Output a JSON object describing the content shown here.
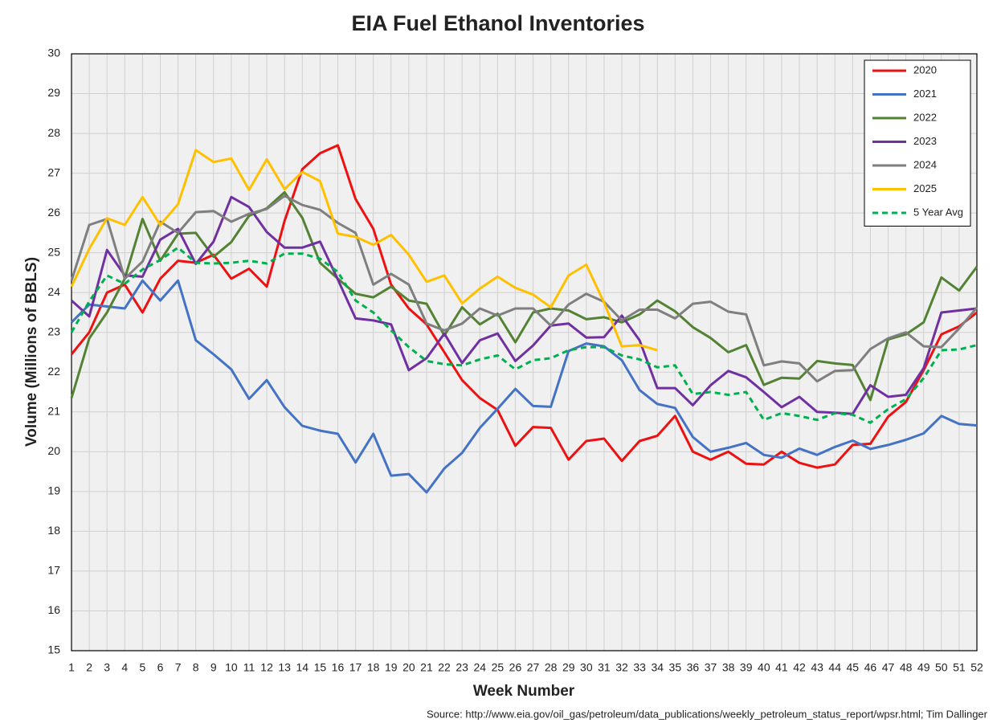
{
  "chart_data": {
    "type": "line",
    "title": "EIA Fuel Ethanol Inventories",
    "ylabel": "Volume (Millions of BBLS)",
    "xlabel": "Week Number",
    "source": "Source: http://www.eia.gov/oil_gas/petroleum/data_publications/weekly_petroleum_status_report/wpsr.html; Tim Dallinger",
    "x": [
      1,
      2,
      3,
      4,
      5,
      6,
      7,
      8,
      9,
      10,
      11,
      12,
      13,
      14,
      15,
      16,
      17,
      18,
      19,
      20,
      21,
      22,
      23,
      24,
      25,
      26,
      27,
      28,
      29,
      30,
      31,
      32,
      33,
      34,
      35,
      36,
      37,
      38,
      39,
      40,
      41,
      42,
      43,
      44,
      45,
      46,
      47,
      48,
      49,
      50,
      51,
      52
    ],
    "xlim": [
      1,
      52
    ],
    "xticks": [
      1,
      2,
      3,
      4,
      5,
      6,
      7,
      8,
      9,
      10,
      11,
      12,
      13,
      14,
      15,
      16,
      17,
      18,
      19,
      20,
      21,
      22,
      23,
      24,
      25,
      26,
      27,
      28,
      29,
      30,
      31,
      32,
      33,
      34,
      35,
      36,
      37,
      38,
      39,
      40,
      41,
      42,
      43,
      44,
      45,
      46,
      47,
      48,
      49,
      50,
      51,
      52
    ],
    "ylim": [
      15,
      30
    ],
    "yticks": [
      15,
      16,
      17,
      18,
      19,
      20,
      21,
      22,
      23,
      24,
      25,
      26,
      27,
      28,
      29,
      30
    ],
    "grid": true,
    "legend": "top-right",
    "series": [
      {
        "name": "2020",
        "color": "#ee1111",
        "style": "solid",
        "values": [
          22.45,
          23.0,
          24.0,
          24.2,
          23.5,
          24.35,
          24.8,
          24.75,
          24.95,
          24.35,
          24.6,
          24.15,
          25.8,
          27.1,
          27.5,
          27.7,
          26.35,
          25.6,
          24.2,
          23.6,
          23.2,
          22.5,
          21.8,
          21.35,
          21.05,
          20.15,
          20.62,
          20.6,
          19.8,
          20.27,
          20.33,
          19.77,
          20.27,
          20.4,
          20.9,
          20.0,
          19.8,
          20.0,
          19.7,
          19.68,
          20.0,
          19.72,
          19.6,
          19.68,
          20.17,
          20.2,
          20.88,
          21.25,
          22.05,
          22.95,
          23.15,
          23.5
        ]
      },
      {
        "name": "2021",
        "color": "#4472c4",
        "style": "solid",
        "values": [
          23.25,
          23.7,
          23.65,
          23.6,
          24.3,
          23.8,
          24.3,
          22.8,
          22.45,
          22.07,
          21.33,
          21.8,
          21.12,
          20.65,
          20.53,
          20.45,
          19.73,
          20.45,
          19.4,
          19.44,
          18.98,
          19.58,
          19.97,
          20.6,
          21.08,
          21.58,
          21.15,
          21.13,
          22.53,
          22.72,
          22.65,
          22.3,
          21.55,
          21.2,
          21.1,
          20.37,
          20.0,
          20.1,
          20.22,
          19.92,
          19.85,
          20.08,
          19.92,
          20.12,
          20.28,
          20.07,
          20.17,
          20.3,
          20.46,
          20.9,
          20.7,
          20.66
        ]
      },
      {
        "name": "2022",
        "color": "#548235",
        "style": "solid",
        "values": [
          21.35,
          22.85,
          23.5,
          24.35,
          25.85,
          24.8,
          25.48,
          25.5,
          24.9,
          25.27,
          25.93,
          26.12,
          26.52,
          25.88,
          24.75,
          24.35,
          23.97,
          23.88,
          24.15,
          23.8,
          23.72,
          22.92,
          23.63,
          23.2,
          23.47,
          22.75,
          23.5,
          23.6,
          23.55,
          23.33,
          23.38,
          23.25,
          23.45,
          23.8,
          23.53,
          23.13,
          22.86,
          22.5,
          22.68,
          21.68,
          21.86,
          21.84,
          22.28,
          22.22,
          22.18,
          21.3,
          22.82,
          22.95,
          23.25,
          24.38,
          24.05,
          24.65
        ]
      },
      {
        "name": "2023",
        "color": "#7030a0",
        "style": "solid",
        "values": [
          23.8,
          23.4,
          25.07,
          24.43,
          24.4,
          25.33,
          25.6,
          24.72,
          25.28,
          26.4,
          26.15,
          25.52,
          25.13,
          25.13,
          25.28,
          24.33,
          23.35,
          23.3,
          23.2,
          22.05,
          22.35,
          22.97,
          22.23,
          22.8,
          22.97,
          22.28,
          22.67,
          23.17,
          23.22,
          22.87,
          22.88,
          23.42,
          22.8,
          21.6,
          21.6,
          21.17,
          21.67,
          22.03,
          21.87,
          21.5,
          21.12,
          21.38,
          21.0,
          20.98,
          20.95,
          21.67,
          21.38,
          21.43,
          22.1,
          23.5,
          23.55,
          23.6
        ]
      },
      {
        "name": "2024",
        "color": "#7f7f7f",
        "style": "solid",
        "values": [
          24.3,
          25.7,
          25.85,
          24.35,
          24.78,
          25.78,
          25.5,
          26.02,
          26.05,
          25.78,
          25.98,
          26.1,
          26.43,
          26.2,
          26.08,
          25.75,
          25.5,
          24.2,
          24.47,
          24.2,
          23.22,
          23.05,
          23.22,
          23.6,
          23.42,
          23.6,
          23.6,
          23.17,
          23.7,
          23.97,
          23.77,
          23.3,
          23.57,
          23.57,
          23.35,
          23.72,
          23.77,
          23.52,
          23.45,
          22.17,
          22.27,
          22.22,
          21.77,
          22.03,
          22.05,
          22.58,
          22.85,
          23.0,
          22.65,
          22.63,
          23.1,
          23.62
        ]
      },
      {
        "name": "2025",
        "color": "#ffc000",
        "style": "solid",
        "values": [
          24.15,
          25.1,
          25.87,
          25.7,
          26.4,
          25.7,
          26.22,
          27.58,
          27.28,
          27.37,
          26.58,
          27.35,
          26.6,
          27.03,
          26.8,
          25.48,
          25.4,
          25.2,
          25.45,
          24.95,
          24.27,
          24.43,
          23.73,
          24.1,
          24.4,
          24.12,
          23.95,
          23.63,
          24.43,
          24.7,
          23.75,
          22.65,
          22.68,
          22.55,
          null,
          null,
          null,
          null,
          null,
          null,
          null,
          null,
          null,
          null,
          null,
          null,
          null,
          null,
          null,
          null,
          null,
          null
        ]
      },
      {
        "name": "5 Year Avg",
        "color": "#00b050",
        "style": "dashed",
        "values": [
          23.0,
          23.78,
          24.43,
          24.22,
          24.58,
          24.82,
          25.13,
          24.75,
          24.73,
          24.75,
          24.8,
          24.73,
          24.98,
          24.98,
          24.85,
          24.52,
          23.8,
          23.5,
          23.05,
          22.63,
          22.28,
          22.2,
          22.17,
          22.32,
          22.42,
          22.07,
          22.3,
          22.35,
          22.55,
          22.63,
          22.63,
          22.42,
          22.32,
          22.12,
          22.17,
          21.45,
          21.5,
          21.43,
          21.5,
          20.8,
          20.97,
          20.9,
          20.8,
          20.97,
          20.93,
          20.73,
          21.07,
          21.32,
          21.85,
          22.55,
          22.57,
          22.68
        ]
      }
    ]
  }
}
